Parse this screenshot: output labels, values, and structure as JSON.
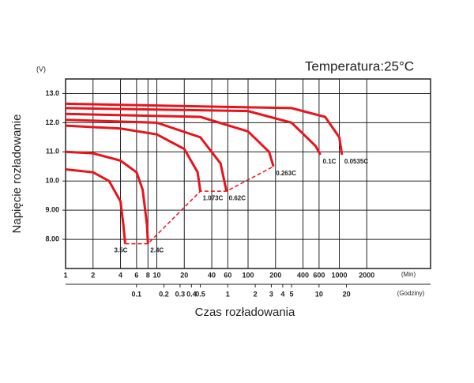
{
  "chart_data": {
    "type": "line",
    "title": "Temperatura:25°C",
    "x_label": "Czas rozładowania",
    "y_label": "Napięcie rozładowanie",
    "y_unit": "(V)",
    "x_unit": "(Min)",
    "x2_unit": "(Godziny)",
    "log_x": true,
    "grid": true,
    "color": "#e8141b",
    "xlim": [
      1,
      10000
    ],
    "xticks": [
      1,
      2,
      4,
      6,
      8,
      10,
      20,
      40,
      60,
      100,
      200,
      400,
      600,
      1000,
      2000
    ],
    "x2lim": [
      0.0167,
      166.7
    ],
    "x2ticks": [
      0.1,
      0.2,
      0.3,
      0.4,
      0.5,
      1,
      2,
      3,
      4,
      5,
      10,
      20
    ],
    "ylim": [
      7.0,
      13.5
    ],
    "yticks": [
      {
        "value": 8,
        "label": "8.00"
      },
      {
        "value": 9,
        "label": "9.00"
      },
      {
        "value": 10,
        "label": "10.0"
      },
      {
        "value": 11,
        "label": "11.0"
      },
      {
        "value": 12,
        "label": "12.0"
      },
      {
        "value": 13,
        "label": "13.0"
      }
    ],
    "series": [
      {
        "name": "3.5C",
        "x": [
          1,
          2,
          3,
          4,
          4.3,
          4.5
        ],
        "values": [
          10.4,
          10.3,
          10.0,
          9.3,
          8.5,
          7.85
        ]
      },
      {
        "name": "2.4C",
        "x": [
          1,
          2,
          4,
          6,
          7,
          7.8,
          8
        ],
        "values": [
          11.0,
          10.95,
          10.7,
          10.3,
          9.7,
          8.5,
          7.85
        ]
      },
      {
        "name": "1.073C",
        "x": [
          1,
          4,
          10,
          20,
          28,
          30
        ],
        "values": [
          11.9,
          11.8,
          11.6,
          11.1,
          10.3,
          9.65
        ]
      },
      {
        "name": "0.62C",
        "x": [
          1,
          10,
          30,
          50,
          58
        ],
        "values": [
          12.1,
          12.0,
          11.5,
          10.6,
          9.65
        ]
      },
      {
        "name": "0.263C",
        "x": [
          1,
          30,
          100,
          170,
          190
        ],
        "values": [
          12.3,
          12.2,
          11.7,
          11.0,
          10.5
        ]
      },
      {
        "name": "0.1C",
        "x": [
          1,
          100,
          300,
          550,
          620
        ],
        "values": [
          12.5,
          12.4,
          12.0,
          11.2,
          10.9
        ]
      },
      {
        "name": "0.0535C",
        "x": [
          1,
          300,
          700,
          1000,
          1070
        ],
        "values": [
          12.65,
          12.5,
          12.2,
          11.5,
          10.9
        ]
      }
    ]
  }
}
